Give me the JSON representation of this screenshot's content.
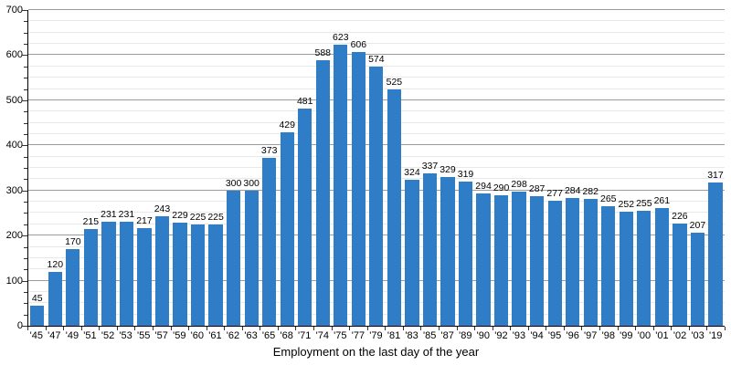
{
  "chart_data": {
    "type": "bar",
    "title": "Employment on the last day of the year",
    "categories": [
      "'45",
      "'47",
      "'49",
      "'51",
      "'52",
      "'53",
      "'55",
      "'57",
      "'59",
      "'60",
      "'61",
      "'62",
      "'63",
      "'65",
      "'68",
      "'71",
      "'74",
      "'75",
      "'77",
      "'79",
      "'81",
      "'83",
      "'85",
      "'87",
      "'89",
      "'90",
      "'92",
      "'93",
      "'94",
      "'95",
      "'96",
      "'97",
      "'98",
      "'99",
      "'00",
      "'01",
      "'02",
      "'03",
      "'19"
    ],
    "values": [
      45,
      120,
      170,
      215,
      231,
      231,
      217,
      243,
      229,
      225,
      225,
      300,
      300,
      373,
      429,
      481,
      588,
      623,
      606,
      574,
      525,
      324,
      337,
      329,
      319,
      294,
      290,
      298,
      287,
      277,
      284,
      282,
      265,
      252,
      255,
      261,
      226,
      207,
      317
    ],
    "xlabel": "Employment on the last day of the year",
    "ylabel": "",
    "ylim": [
      0,
      700
    ],
    "y_tick_labels": [
      0,
      100,
      200,
      300,
      400,
      500,
      600,
      700
    ],
    "y_major_step": 100,
    "y_minor_step": 25,
    "grid": true,
    "legend": "none",
    "value_labels_shown": true,
    "colors": {
      "bar": "#2e7dc6",
      "grid_major": "#9c9c9c",
      "grid_minor": "#e8e8e8",
      "axis": "#000000",
      "tick": "#333333",
      "text": "#000000",
      "background": "#ffffff"
    }
  }
}
